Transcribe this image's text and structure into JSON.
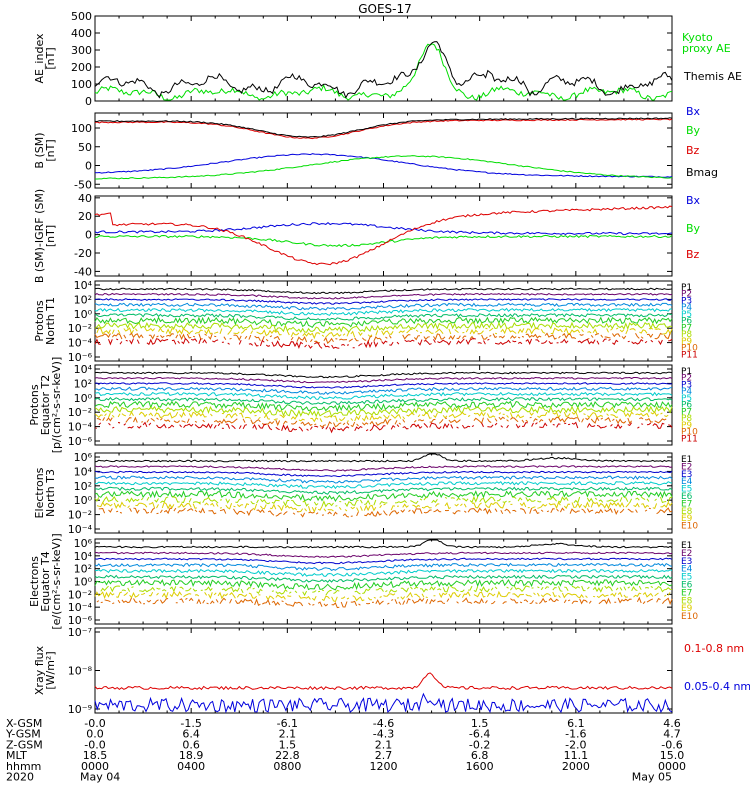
{
  "title": "GOES-17",
  "colors": {
    "black": "#000000",
    "green": "#00dd00",
    "blue": "#0000dd",
    "red": "#dd0000",
    "P": [
      "#000000",
      "#6a006a",
      "#0000cc",
      "#0088dd",
      "#00cccc",
      "#00bb66",
      "#22cc22",
      "#aadd00",
      "#ddcc00",
      "#dd6600",
      "#cc0000"
    ],
    "E": [
      "#000000",
      "#6a006a",
      "#0000cc",
      "#0088dd",
      "#00cccc",
      "#00bb66",
      "#22cc22",
      "#aadd00",
      "#ddcc00",
      "#dd6600",
      "#cc0000"
    ]
  },
  "chart_data": [
    {
      "type": "line",
      "ylabel": [
        "AE_index",
        "[nT]"
      ],
      "ylim": [
        0,
        500
      ],
      "yticks": [
        "0",
        "100",
        "200",
        "300",
        "400",
        "500"
      ],
      "series": [
        {
          "name": "Kyoto proxy AE",
          "label_lines": [
            "Kyoto",
            "proxy AE"
          ],
          "color": "green",
          "profile": "ae_kyoto"
        },
        {
          "name": "Themis AE",
          "label_lines": [
            "Themis AE"
          ],
          "color": "black",
          "profile": "ae_themis"
        }
      ]
    },
    {
      "type": "line",
      "ylabel": [
        "B (SM)",
        "[nT]"
      ],
      "ylim": [
        -60,
        140
      ],
      "yticks": [
        "-50",
        "0",
        "50",
        "100"
      ],
      "series": [
        {
          "name": "Bx",
          "color": "blue",
          "profile": "b_bx"
        },
        {
          "name": "By",
          "color": "green",
          "profile": "b_by"
        },
        {
          "name": "Bz",
          "color": "red",
          "profile": "b_bz"
        },
        {
          "name": "Bmag",
          "color": "black",
          "profile": "b_bmag"
        }
      ]
    },
    {
      "type": "line",
      "ylabel": [
        "B (SM)-IGRF (SM)",
        "[nT]"
      ],
      "ylim": [
        -45,
        42
      ],
      "yticks": [
        "-40",
        "-20",
        "0",
        "20",
        "40"
      ],
      "series": [
        {
          "name": "Bx",
          "color": "blue",
          "profile": "d_bx"
        },
        {
          "name": "By",
          "color": "green",
          "profile": "d_by"
        },
        {
          "name": "Bz",
          "color": "red",
          "profile": "d_bz"
        }
      ]
    },
    {
      "type": "line",
      "log": true,
      "ylabel": [
        "Protons",
        "North T1"
      ],
      "yticks": [
        "10⁴",
        "10²",
        "10⁰",
        "10⁻²",
        "10⁻⁴",
        "10⁻⁶"
      ],
      "channels": [
        "P1",
        "P2",
        "P3",
        "P4",
        "P5",
        "P6",
        "P7",
        "P8",
        "P9",
        "P10",
        "P11"
      ],
      "palette": "P"
    },
    {
      "type": "line",
      "log": true,
      "ylabel": [
        "Protons",
        "Equator T2",
        "[p/(cm²-s-sr-keV)]"
      ],
      "yticks": [
        "10⁴",
        "10²",
        "10⁰",
        "10⁻²",
        "10⁻⁴",
        "10⁻⁶"
      ],
      "channels": [
        "P1",
        "P2",
        "P3",
        "P4",
        "P5",
        "P6",
        "P7",
        "P8",
        "P9",
        "P10",
        "P11"
      ],
      "palette": "P"
    },
    {
      "type": "line",
      "log": true,
      "ylabel": [
        "Electrons",
        "North T3"
      ],
      "yticks": [
        "10⁶",
        "10⁴",
        "10²",
        "10⁰",
        "10⁻²",
        "10⁻⁴"
      ],
      "channels": [
        "E1",
        "E2",
        "E3",
        "E4",
        "E5",
        "E6",
        "E7",
        "E8",
        "E9",
        "E10"
      ],
      "palette": "E"
    },
    {
      "type": "line",
      "log": true,
      "ylabel": [
        "Electrons",
        "Equator T4",
        "[e/(cm²-s-sr-keV)]"
      ],
      "yticks": [
        "10⁶",
        "10⁴",
        "10²",
        "10⁰",
        "10⁻²",
        "10⁻⁴",
        "10⁻⁶"
      ],
      "channels": [
        "E1",
        "E2",
        "E3",
        "E4",
        "E5",
        "E6",
        "E7",
        "E8",
        "E9",
        "E10"
      ],
      "palette": "E"
    },
    {
      "type": "line",
      "log": true,
      "ylabel": [
        "Xray flux",
        "[W/m²]"
      ],
      "yticks": [
        "10⁻⁷",
        "10⁻⁸",
        "10⁻⁹"
      ],
      "series": [
        {
          "name": "0.1-0.8 nm",
          "color": "red",
          "profile": "x_long"
        },
        {
          "name": "0.05-0.4 nm",
          "color": "blue",
          "profile": "x_short"
        }
      ]
    }
  ],
  "x_axis": {
    "row_labels": [
      "X-GSM",
      "Y-GSM",
      "Z-GSM",
      "MLT",
      "hhmm",
      "2020"
    ],
    "columns": [
      [
        "-0.0",
        "0.0",
        "-0.0",
        "18.5",
        "0000",
        "May 04"
      ],
      [
        "-1.5",
        "6.4",
        "0.6",
        "18.9",
        "0400",
        ""
      ],
      [
        "-6.1",
        "2.1",
        "1.5",
        "22.8",
        "0800",
        ""
      ],
      [
        "-4.6",
        "-4.3",
        "2.1",
        "2.7",
        "1200",
        ""
      ],
      [
        "1.5",
        "-6.4",
        "-0.2",
        "6.8",
        "1600",
        ""
      ],
      [
        "6.1",
        "-1.6",
        "-2.0",
        "11.1",
        "2000",
        ""
      ],
      [
        "4.6",
        "4.7",
        "-0.6",
        "15.0",
        "0000",
        "May 05"
      ]
    ]
  }
}
